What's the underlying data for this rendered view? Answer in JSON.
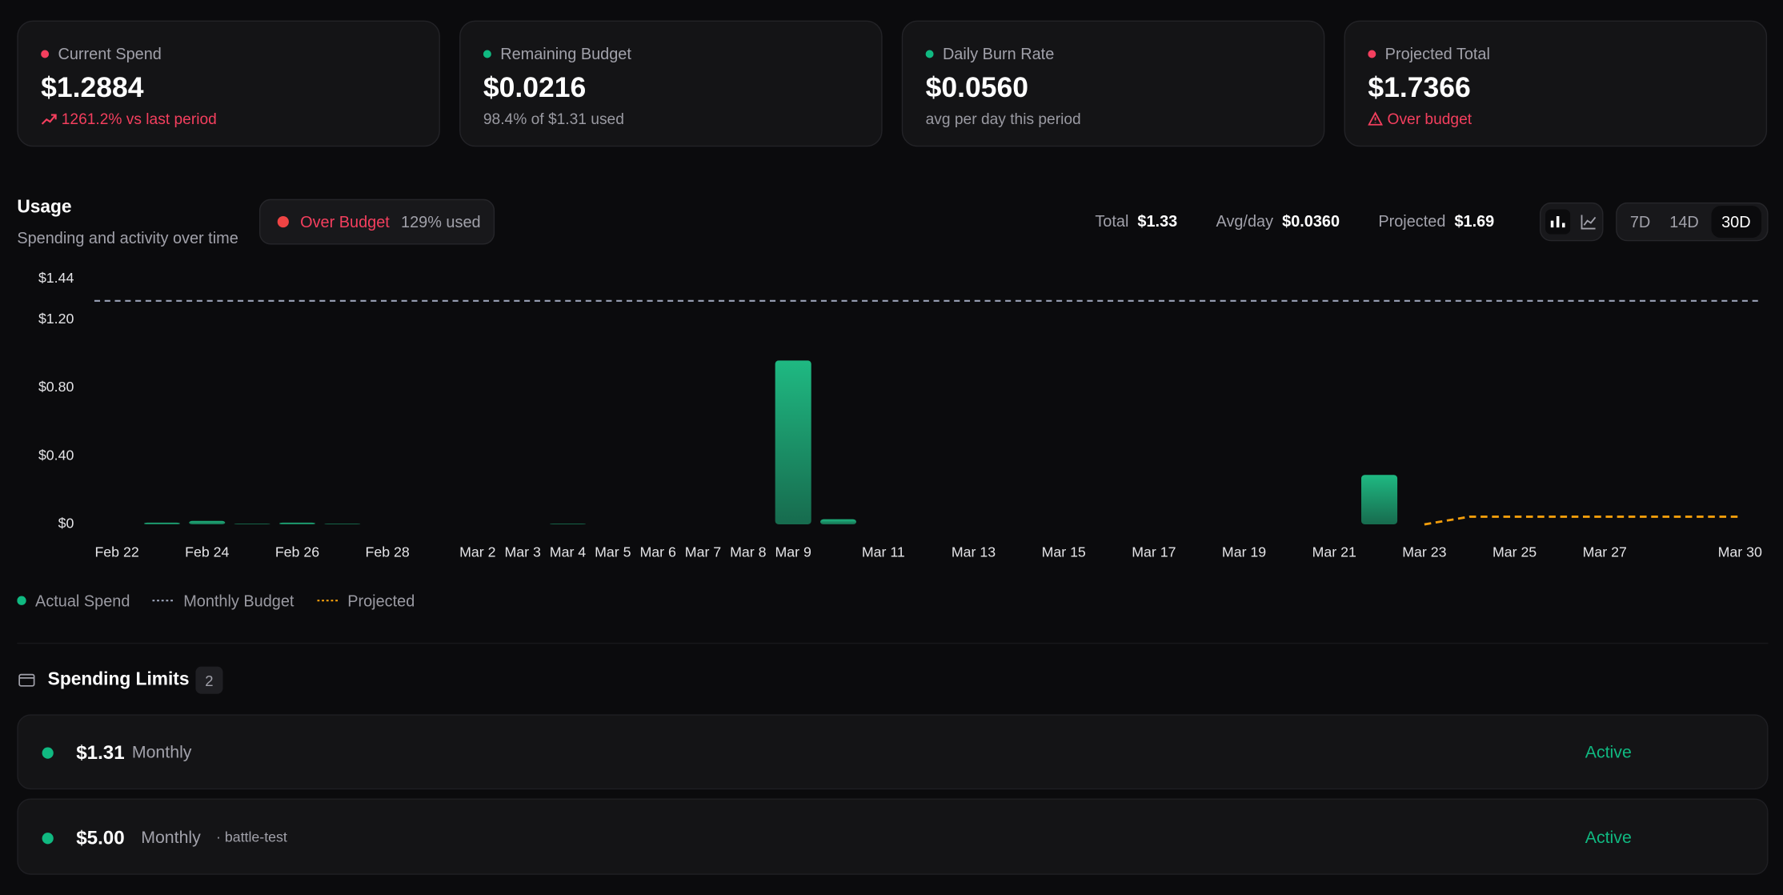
{
  "cards": [
    {
      "label": "Current Spend",
      "value": "$1.2884",
      "note": "1261.2% vs last period"
    },
    {
      "label": "Remaining Budget",
      "value": "$0.0216",
      "note": "98.4% of $1.31 used"
    },
    {
      "label": "Daily Burn Rate",
      "value": "$0.0560",
      "note": "avg per day this period"
    },
    {
      "label": "Projected Total",
      "value": "$1.7366",
      "note": "Over budget"
    }
  ],
  "usage": {
    "title": "Usage",
    "subtitle": "Spending and activity over time",
    "badge": {
      "label": "Over Budget",
      "detail": "129% used"
    },
    "stats": [
      {
        "label": "Total",
        "value": "$1.33"
      },
      {
        "label": "Avg/day",
        "value": "$0.0360"
      },
      {
        "label": "Projected",
        "value": "$1.69"
      }
    ],
    "ranges": [
      "7D",
      "14D",
      "30D"
    ]
  },
  "chart_data": {
    "type": "bar",
    "categories": [
      "Feb 22",
      null,
      "Feb 24",
      null,
      "Feb 26",
      null,
      "Feb 28",
      null,
      "Mar 2",
      "Mar 3",
      "Mar 4",
      "Mar 5",
      "Mar 6",
      "Mar 7",
      "Mar 8",
      "Mar 9",
      null,
      "Mar 11",
      null,
      "Mar 13",
      null,
      "Mar 15",
      null,
      "Mar 17",
      null,
      "Mar 19",
      null,
      "Mar 21",
      null,
      "Mar 23",
      null,
      "Mar 25",
      null,
      "Mar 27",
      null,
      null,
      "Mar 30"
    ],
    "series": [
      {
        "name": "Actual Spend",
        "type": "bar",
        "color": "#10b981",
        "values": [
          0,
          0.01,
          0.02,
          0.003,
          0.01,
          0.003,
          0,
          0,
          0,
          0,
          0.003,
          0,
          0,
          0,
          0,
          0.96,
          0.03,
          0,
          0,
          0,
          0,
          0,
          0,
          0,
          0,
          0,
          0,
          0,
          0.29,
          null,
          null,
          null,
          null,
          null,
          null,
          null,
          null
        ]
      },
      {
        "name": "Monthly Budget",
        "type": "hline",
        "color": "#9ca3b8",
        "value": 1.31
      },
      {
        "name": "Projected",
        "type": "line",
        "color": "#f59e0b",
        "values": [
          null,
          null,
          null,
          null,
          null,
          null,
          null,
          null,
          null,
          null,
          null,
          null,
          null,
          null,
          null,
          null,
          null,
          null,
          null,
          null,
          null,
          null,
          null,
          null,
          null,
          null,
          null,
          null,
          null,
          0,
          0.045,
          0.045,
          0.045,
          0.045,
          0.045,
          0.045,
          0.045
        ]
      }
    ],
    "ylim": [
      0,
      1.44
    ],
    "yticks": [
      {
        "value": 0,
        "label": "$0"
      },
      {
        "value": 0.4,
        "label": "$0.40"
      },
      {
        "value": 0.8,
        "label": "$0.80"
      },
      {
        "value": 1.2,
        "label": "$1.20"
      },
      {
        "value": 1.44,
        "label": "$1.44"
      }
    ],
    "grid": false
  },
  "spending_limits": {
    "title": "Spending Limits",
    "count": 2,
    "items": [
      {
        "amount": "$1.31",
        "period": "Monthly",
        "status": "Active"
      },
      {
        "amount": "$5.00",
        "period": "Monthly",
        "tag": "· battle-test",
        "status": "Active"
      }
    ]
  }
}
